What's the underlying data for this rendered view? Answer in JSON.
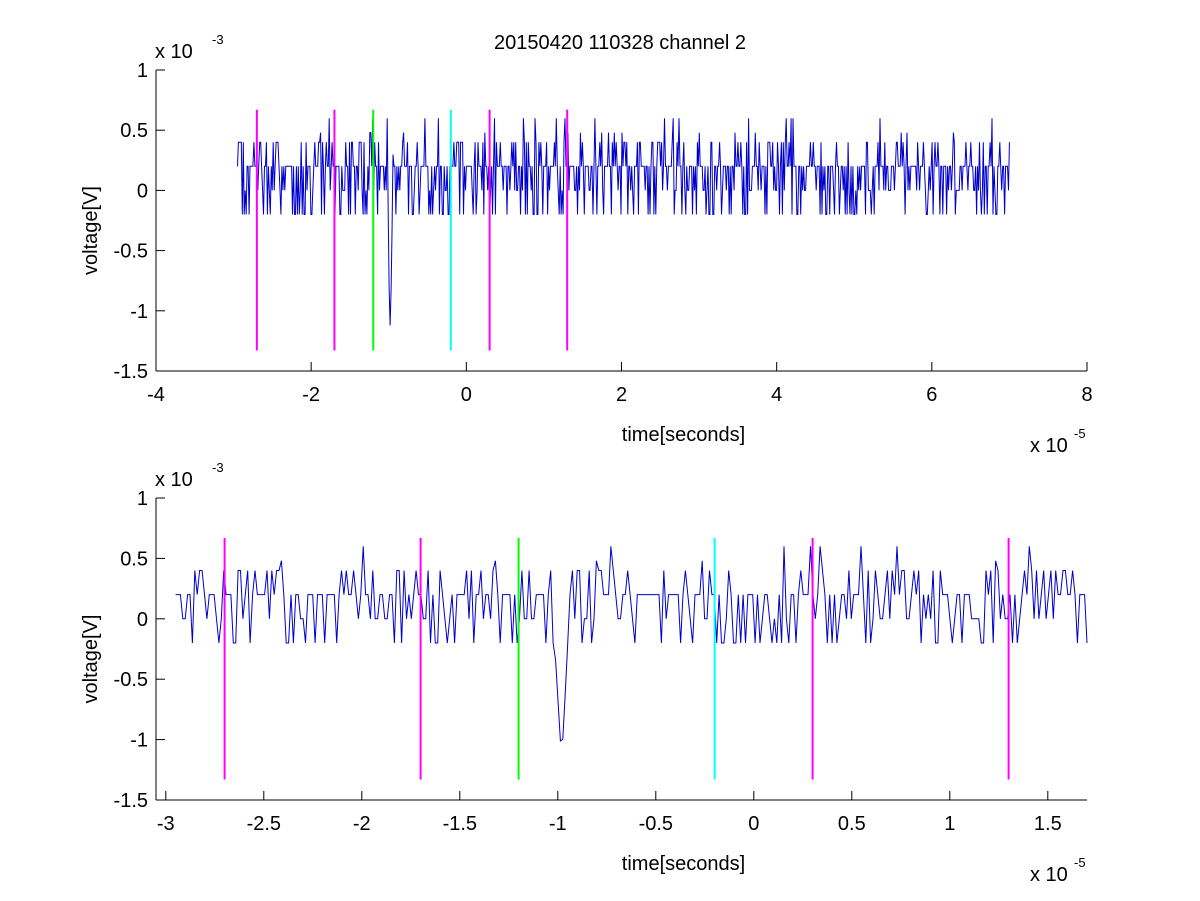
{
  "figure": {
    "title": "20150420 110328 channel 2"
  },
  "chart_data": [
    {
      "type": "line",
      "xlabel": "time[seconds]",
      "ylabel": "voltage[V]",
      "x_exponent_label": "x 10",
      "x_exponent": "-5",
      "y_exponent_label": "x 10",
      "y_exponent": "-3",
      "xlim": [
        -4e-05,
        8e-05
      ],
      "ylim": [
        -0.0015,
        0.001
      ],
      "x_ticks": [
        -4,
        -2,
        0,
        2,
        4,
        6,
        8
      ],
      "y_ticks": [
        -1.5,
        -1,
        -0.5,
        0,
        0.5,
        1
      ],
      "signal": {
        "color": "#0000cc",
        "x_start": -2.95e-05,
        "x_end": 7e-05,
        "sample_count": 800,
        "spike_time": -9.8e-06,
        "spike_min": -0.0012
      },
      "markers": [
        {
          "x": -2.7e-05,
          "color": "#ff00ff"
        },
        {
          "x": -1.7e-05,
          "color": "#ff00ff"
        },
        {
          "x": -1.2e-05,
          "color": "#00ff00"
        },
        {
          "x": -2e-06,
          "color": "#00ffff"
        },
        {
          "x": 3e-06,
          "color": "#ff00ff"
        },
        {
          "x": 1.3e-05,
          "color": "#ff00ff"
        }
      ],
      "marker_range": [
        -0.00133,
        0.00067
      ]
    },
    {
      "type": "line",
      "xlabel": "time[seconds]",
      "ylabel": "voltage[V]",
      "x_exponent_label": "x 10",
      "x_exponent": "-5",
      "y_exponent_label": "x 10",
      "y_exponent": "-3",
      "xlim": [
        -3.05e-05,
        1.7e-05
      ],
      "ylim": [
        -0.0015,
        0.001
      ],
      "x_ticks": [
        -3,
        -2.5,
        -2,
        -1.5,
        -1,
        -0.5,
        0,
        0.5,
        1,
        1.5
      ],
      "y_ticks": [
        -1.5,
        -1,
        -0.5,
        0,
        0.5,
        1
      ],
      "signal": {
        "color": "#0000cc",
        "x_start": -2.95e-05,
        "x_end": 1.7e-05,
        "sample_count": 380,
        "spike_time": -9.8e-06,
        "spike_min": -0.0012
      },
      "markers": [
        {
          "x": -2.7e-05,
          "color": "#ff00ff"
        },
        {
          "x": -1.7e-05,
          "color": "#ff00ff"
        },
        {
          "x": -1.2e-05,
          "color": "#00ff00"
        },
        {
          "x": -2e-06,
          "color": "#00ffff"
        },
        {
          "x": 3e-06,
          "color": "#ff00ff"
        },
        {
          "x": 1.3e-05,
          "color": "#ff00ff"
        }
      ],
      "marker_range": [
        -0.00133,
        0.00067
      ]
    }
  ]
}
